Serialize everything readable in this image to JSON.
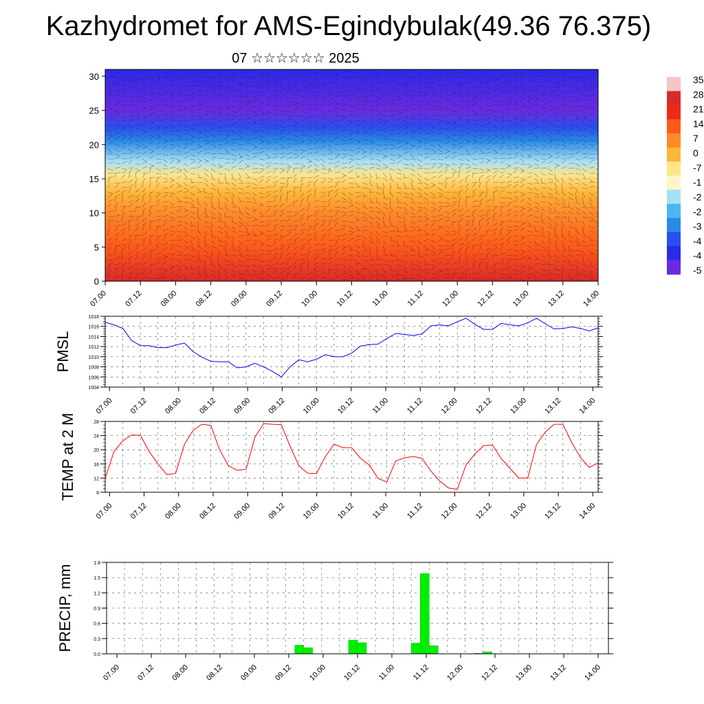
{
  "title": "Kazhydromet for AMS-Egindybulak(49.36 76.375)",
  "subtitle": "07 ☆☆☆☆☆☆ 2025",
  "chart_data": [
    {
      "type": "heatmap",
      "name": "cross-section",
      "x_ticks": [
        "07.00",
        "07.12",
        "08.00",
        "08.12",
        "09.00",
        "09.12",
        "10.00",
        "10.12",
        "11.00",
        "11.12",
        "12.00",
        "12.12",
        "13.00",
        "13.12",
        "14.00"
      ],
      "y_ticks": [
        "0",
        "5",
        "10",
        "15",
        "20",
        "25",
        "30"
      ],
      "ylim": [
        0,
        31
      ],
      "colorbar_labels": [
        "35",
        "28",
        "21",
        "14",
        "7",
        "0",
        "-7",
        "-1",
        "-2",
        "-2",
        "-3",
        "-4",
        "-4",
        "-5"
      ],
      "colorbar_colors": [
        "#f4c6c6",
        "#d92a2a",
        "#ee2a16",
        "#ff5a1a",
        "#ff8a2a",
        "#ffb63a",
        "#ffe48a",
        "#fff6c8",
        "#a8e0f4",
        "#4ab8f0",
        "#2a8ae6",
        "#2a4ef0",
        "#2a2ae8",
        "#6a2ae0"
      ],
      "temperature_profile": [
        {
          "height": 0,
          "value": 28
        },
        {
          "height": 5,
          "value": 17
        },
        {
          "height": 10,
          "value": 8
        },
        {
          "height": 13,
          "value": 2
        },
        {
          "height": 15.5,
          "value": -8
        },
        {
          "height": 17.5,
          "value": -22
        },
        {
          "height": 20.5,
          "value": -33
        },
        {
          "height": 22.5,
          "value": -45
        },
        {
          "height": 25,
          "value": -54
        },
        {
          "height": 31,
          "value": -48
        }
      ]
    },
    {
      "type": "line",
      "name": "pmsl",
      "ylabel": "PMSL",
      "ylim": [
        1004,
        1018
      ],
      "y_ticks": [
        "1018",
        "1016",
        "1014",
        "1012",
        "1010",
        "1008",
        "1006",
        "1004"
      ],
      "x_ticks": [
        "07.00",
        "07.12",
        "08.00",
        "08.12",
        "09.00",
        "09.12",
        "10.00",
        "10.12",
        "11.00",
        "11.12",
        "12.00",
        "12.12",
        "13.00",
        "13.12",
        "14.00"
      ],
      "color": "#0000ff",
      "values": [
        1016.8,
        1016.3,
        1015.6,
        1013.2,
        1012.2,
        1012.2,
        1011.8,
        1011.8,
        1012.3,
        1012.7,
        1011.0,
        1009.9,
        1009.1,
        1009.0,
        1009.0,
        1007.8,
        1008.0,
        1008.7,
        1008.0,
        1007.1,
        1006.0,
        1008.0,
        1009.4,
        1009.0,
        1009.5,
        1010.4,
        1010.0,
        1010.0,
        1010.7,
        1012.1,
        1012.4,
        1012.5,
        1013.6,
        1014.6,
        1014.4,
        1014.2,
        1014.5,
        1016.1,
        1016.3,
        1016.1,
        1016.9,
        1017.6,
        1016.4,
        1015.4,
        1015.4,
        1016.6,
        1016.3,
        1016.1,
        1016.7,
        1017.6,
        1016.5,
        1015.5,
        1015.6,
        1015.9,
        1015.6,
        1015.1,
        1015.7
      ]
    },
    {
      "type": "line",
      "name": "temp",
      "ylabel": "TEMP at 2 M",
      "ylim": [
        8,
        28
      ],
      "y_ticks": [
        "28",
        "24",
        "20",
        "16",
        "12",
        "8"
      ],
      "x_ticks": [
        "07.00",
        "07.12",
        "08.00",
        "08.12",
        "09.00",
        "09.12",
        "10.00",
        "10.12",
        "11.00",
        "11.12",
        "12.00",
        "12.12",
        "13.00",
        "13.12",
        "14.00"
      ],
      "color": "#ff0000",
      "values": [
        11.9,
        19.5,
        22.5,
        24.2,
        24.1,
        19.5,
        16.0,
        13.0,
        13.3,
        21.5,
        25.5,
        27.2,
        26.9,
        20.0,
        15.5,
        14.2,
        14.5,
        23.5,
        27.4,
        27.2,
        27.1,
        21.0,
        15.5,
        13.4,
        13.3,
        18.0,
        21.6,
        20.6,
        20.6,
        17.6,
        15.7,
        11.9,
        10.9,
        16.8,
        17.7,
        18.1,
        17.6,
        14.0,
        11.2,
        9.2,
        8.8,
        15.7,
        18.8,
        21.2,
        21.3,
        17.5,
        14.7,
        12.0,
        12.0,
        21.5,
        25.0,
        27.2,
        27.2,
        22.0,
        17.8,
        15.0,
        16.3
      ]
    },
    {
      "type": "bar",
      "name": "precip",
      "ylabel": "PRECIP, mm",
      "ylim": [
        0,
        1.8
      ],
      "y_ticks": [
        "1.8",
        "1.5",
        "1.2",
        "0.9",
        "0.6",
        "0.3",
        "0.0"
      ],
      "x_ticks": [
        "07.00",
        "07.12",
        "08.00",
        "08.12",
        "09.00",
        "09.12",
        "10.00",
        "10.12",
        "11.00",
        "11.12",
        "12.00",
        "12.12",
        "13.00",
        "13.12",
        "14.00"
      ],
      "color": "#00ee00",
      "values": [
        0,
        0,
        0,
        0,
        0,
        0,
        0,
        0,
        0,
        0,
        0,
        0,
        0,
        0,
        0,
        0,
        0,
        0,
        0,
        0,
        0,
        0.17,
        0.12,
        0,
        0,
        0,
        0,
        0.27,
        0.22,
        0,
        0,
        0,
        0,
        0,
        0.21,
        1.58,
        0.16,
        0,
        0,
        0,
        0,
        0.01,
        0.04,
        0,
        0,
        0,
        0,
        0,
        0,
        0,
        0,
        0,
        0,
        0,
        0,
        0
      ]
    }
  ]
}
